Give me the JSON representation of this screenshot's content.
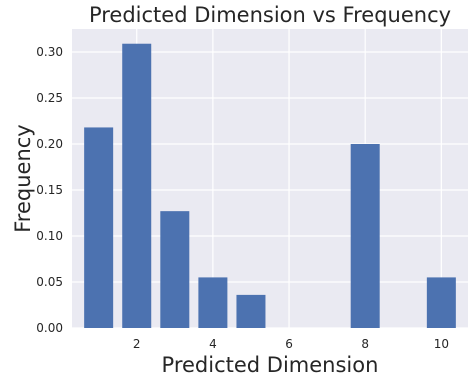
{
  "chart_data": {
    "type": "bar",
    "title": "Predicted Dimension vs Frequency",
    "xlabel": "Predicted Dimension",
    "ylabel": "Frequency",
    "x": [
      1,
      2,
      3,
      4,
      5,
      6,
      7,
      8,
      9,
      10
    ],
    "values": [
      0.218,
      0.309,
      0.127,
      0.055,
      0.036,
      0.0,
      0.0,
      0.2,
      0.0,
      0.055
    ],
    "xlim": [
      0.3,
      10.7
    ],
    "ylim": [
      0,
      0.325
    ],
    "xticks": [
      2,
      4,
      6,
      8,
      10
    ],
    "xtick_labels": [
      "2",
      "4",
      "6",
      "8",
      "10"
    ],
    "yticks": [
      0.0,
      0.05,
      0.1,
      0.15,
      0.2,
      0.25,
      0.3
    ],
    "ytick_labels": [
      "0.00",
      "0.05",
      "0.10",
      "0.15",
      "0.20",
      "0.25",
      "0.30"
    ],
    "grid": true,
    "legend": "none",
    "colors": {
      "bar": "#4c72b0",
      "plot_background": "#eaeaf2",
      "grid": "#ffffff"
    }
  }
}
